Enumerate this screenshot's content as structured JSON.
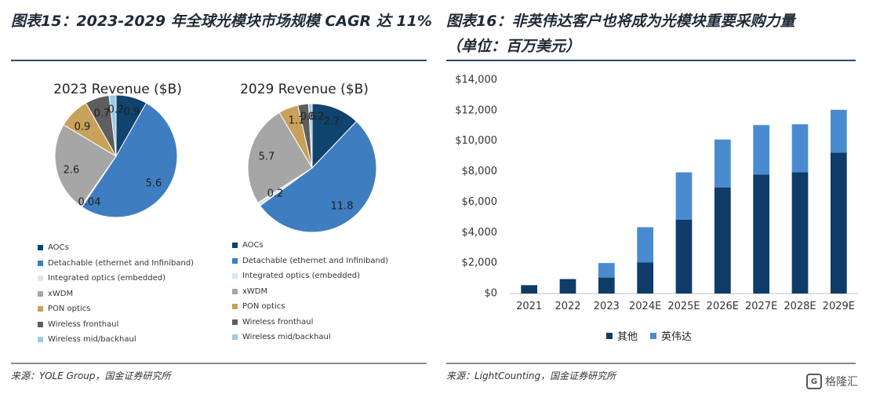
{
  "left_title": "图表15：2023-2029 年全球光模块市场规模 CAGR 达 11%",
  "right_title_line1": "图表16：非英伟达客户也将成为光模块重要采购力量",
  "right_title_line2": "（单位：百万美元）",
  "left_source": "来源：YOLE Group，国金证券研究所",
  "right_source": "来源：LightCounting，国金证券研究所",
  "watermark": "格隆汇",
  "colors": {
    "aocs": "#10436e",
    "detachable": "#3f7dc1",
    "integrated": "#d8e6f2",
    "xwdm": "#a6a6a6",
    "pon": "#c8a15a",
    "fronthaul": "#5e5e5e",
    "midhaul": "#9ecae6",
    "others": "#0f3c68",
    "nvidia": "#4a8bd0"
  },
  "chart_data": [
    {
      "type": "pie",
      "title": "2023 Revenue ($B)",
      "labels": [
        "AOCs",
        "Detachable (ethernet and Infiniband)",
        "Integrated optics (embedded)",
        "xWDM",
        "PON optics",
        "Wireless fronthaul",
        "Wireless mid/backhaul"
      ],
      "values": [
        0.9,
        5.6,
        0.04,
        2.6,
        0.9,
        0.7,
        0.2
      ],
      "value_labels": [
        "0.9",
        "5.6",
        "0.04",
        "2.6",
        "0.9",
        "0.7",
        "0.2"
      ]
    },
    {
      "type": "pie",
      "title": "2029 Revenue ($B)",
      "labels": [
        "AOCs",
        "Detachable (ethernet and Infiniband)",
        "Integrated optics (embedded)",
        "xWDM",
        "PON optics",
        "Wireless fronthaul",
        "Wireless mid/backhaul"
      ],
      "values": [
        2.7,
        11.8,
        0.2,
        5.7,
        1.1,
        0.6,
        0.2
      ],
      "value_labels": [
        "2.7",
        "11.8",
        "0.2",
        "5.7",
        "1.1",
        "0.6",
        "0.2"
      ]
    },
    {
      "type": "bar",
      "stacked": true,
      "categories": [
        "2021",
        "2022",
        "2023",
        "2024E",
        "2025E",
        "2026E",
        "2027E",
        "2028E",
        "2029E"
      ],
      "series": [
        {
          "name": "其他",
          "values": [
            550,
            950,
            1050,
            2050,
            4850,
            6950,
            7800,
            7950,
            9250
          ]
        },
        {
          "name": "英伟达",
          "values": [
            0,
            0,
            950,
            2300,
            3100,
            3150,
            3250,
            3150,
            2800
          ]
        }
      ],
      "ylim": [
        0,
        14000
      ],
      "yticks": [
        0,
        2000,
        4000,
        6000,
        8000,
        10000,
        12000,
        14000
      ],
      "ytick_labels": [
        "$0",
        "$2,000",
        "$4,000",
        "$6,000",
        "$8,000",
        "$10,000",
        "$12,000",
        "$14,000"
      ]
    }
  ]
}
